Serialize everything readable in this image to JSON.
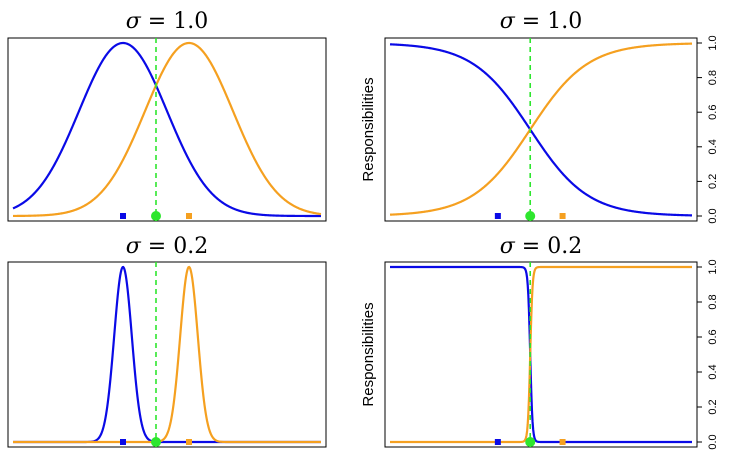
{
  "colors": {
    "blue": "#0a0ae6",
    "orange": "#f5a020",
    "green": "#2ee62e"
  },
  "chart_data": [
    {
      "type": "line",
      "title_symbol": "σ",
      "title_value": "= 1.0",
      "ylabel": "",
      "xlim": [
        -3.5,
        3.5
      ],
      "ylim": [
        0,
        1
      ],
      "y_axis_ticks": false,
      "sigma": 1.0,
      "means": {
        "blue": -1.0,
        "orange": 0.5
      },
      "boundary": -0.25,
      "series": [
        {
          "key": "blue",
          "shape": "gaussian",
          "peak": 1.0
        },
        {
          "key": "orange",
          "shape": "gaussian",
          "peak": 1.0
        }
      ]
    },
    {
      "type": "line",
      "title_symbol": "σ",
      "title_value": "= 1.0",
      "ylabel": "Responsibilities",
      "xlim": [
        -3.5,
        3.5
      ],
      "ylim": [
        0,
        1
      ],
      "y_axis_ticks": true,
      "yticks": [
        "0.0",
        "0.2",
        "0.4",
        "0.6",
        "0.8",
        "1.0"
      ],
      "sigma": 1.0,
      "means": {
        "blue": -1.0,
        "orange": 0.5
      },
      "boundary": -0.25,
      "series": [
        {
          "key": "blue",
          "shape": "responsibility"
        },
        {
          "key": "orange",
          "shape": "responsibility"
        }
      ]
    },
    {
      "type": "line",
      "title_symbol": "σ",
      "title_value": "= 0.2",
      "ylabel": "",
      "xlim": [
        -3.5,
        3.5
      ],
      "ylim": [
        0,
        1
      ],
      "y_axis_ticks": false,
      "sigma": 0.2,
      "means": {
        "blue": -1.0,
        "orange": 0.5
      },
      "boundary": -0.25,
      "series": [
        {
          "key": "blue",
          "shape": "gaussian",
          "peak": 1.0
        },
        {
          "key": "orange",
          "shape": "gaussian",
          "peak": 1.0
        }
      ]
    },
    {
      "type": "line",
      "title_symbol": "σ",
      "title_value": "= 0.2",
      "ylabel": "Responsibilities",
      "xlim": [
        -3.5,
        3.5
      ],
      "ylim": [
        0,
        1
      ],
      "y_axis_ticks": true,
      "yticks": [
        "0.0",
        "0.2",
        "0.4",
        "0.6",
        "0.8",
        "1.0"
      ],
      "sigma": 0.2,
      "means": {
        "blue": -1.0,
        "orange": 0.5
      },
      "boundary": -0.25,
      "series": [
        {
          "key": "blue",
          "shape": "responsibility"
        },
        {
          "key": "orange",
          "shape": "responsibility"
        }
      ]
    }
  ]
}
